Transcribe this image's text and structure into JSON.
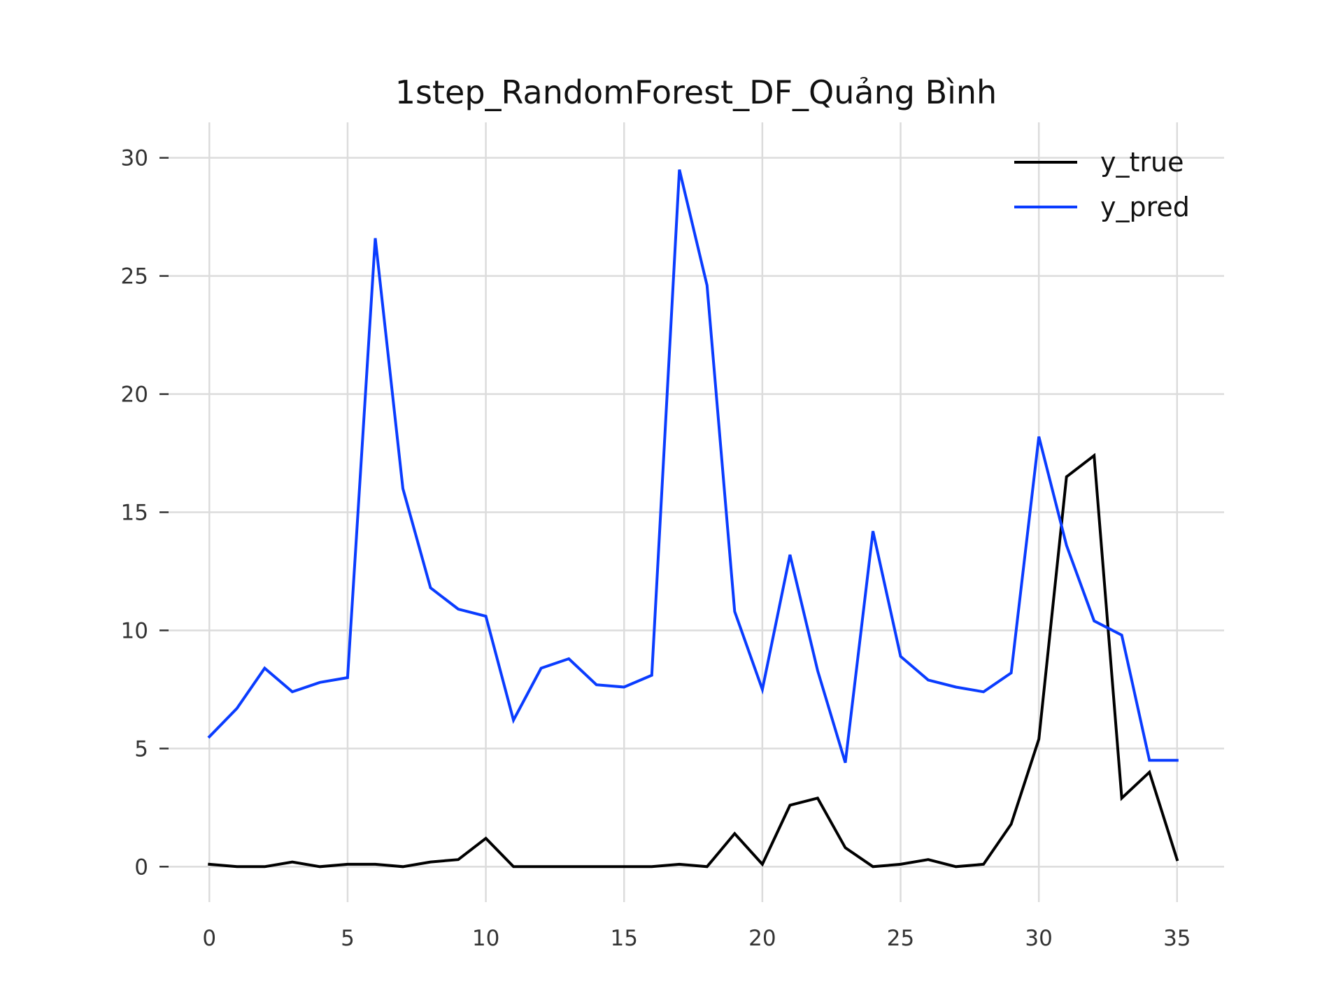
{
  "chart_data": {
    "type": "line",
    "title": "1step_RandomForest_DF_Quảng Bình",
    "xlabel": "",
    "ylabel": "",
    "xlim": [
      -1.5,
      36.7
    ],
    "ylim": [
      -1.5,
      31.5
    ],
    "x_ticks": [
      0,
      5,
      10,
      15,
      20,
      25,
      30,
      35
    ],
    "y_ticks": [
      0,
      5,
      10,
      15,
      20,
      25,
      30
    ],
    "grid": true,
    "legend_position": "top-right",
    "x": [
      0,
      1,
      2,
      3,
      4,
      5,
      6,
      7,
      8,
      9,
      10,
      11,
      12,
      13,
      14,
      15,
      16,
      17,
      18,
      19,
      20,
      21,
      22,
      23,
      24,
      25,
      26,
      27,
      28,
      29,
      30,
      31,
      32,
      33,
      34,
      35
    ],
    "series": [
      {
        "name": "y_true",
        "color": "#000000",
        "values": [
          0.1,
          0,
          0,
          0.2,
          0,
          0.1,
          0.1,
          0,
          0.2,
          0.3,
          1.2,
          0,
          0,
          0,
          0,
          0,
          0,
          0.1,
          0,
          1.4,
          0.1,
          2.6,
          2.9,
          0.8,
          0,
          0.1,
          0.3,
          0,
          0.1,
          1.8,
          5.4,
          16.5,
          17.4,
          2.9,
          4,
          0.3
        ]
      },
      {
        "name": "y_pred",
        "color": "#0a3cff",
        "values": [
          5.5,
          6.7,
          8.4,
          7.4,
          7.8,
          8,
          26.6,
          16,
          11.8,
          10.9,
          10.6,
          6.2,
          8.4,
          8.8,
          7.7,
          7.6,
          8.1,
          29.5,
          24.6,
          10.8,
          7.5,
          13.2,
          8.3,
          4.4,
          14.2,
          8.9,
          7.9,
          7.6,
          7.4,
          8.2,
          18.2,
          13.6,
          10.4,
          9.8,
          4.5,
          4.5
        ]
      }
    ]
  }
}
